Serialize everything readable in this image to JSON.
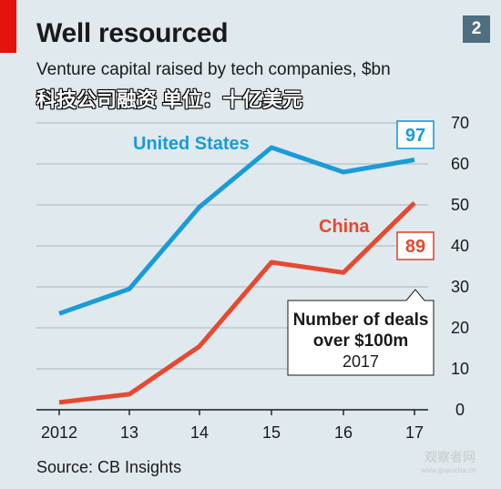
{
  "header": {
    "title": "Well resourced",
    "badge": "2",
    "subtitle": "Venture capital raised by tech companies, $bn",
    "chinese_caption": "科技公司融资 单位：十亿美元"
  },
  "footer": {
    "source": "Source: CB Insights",
    "watermark": "观察者网",
    "watermark_sub": "www.guancha.cn"
  },
  "colors": {
    "us": "#1a9bd7",
    "china": "#e5492f",
    "grid": "#a9b7bf",
    "axis": "#1a1a1a",
    "accent_bar": "#e3120b",
    "background": "#dfe9ee"
  },
  "chart_data": {
    "type": "line",
    "title": "Well resourced",
    "subtitle": "Venture capital raised by tech companies, $bn",
    "x": [
      "2012",
      "13",
      "14",
      "15",
      "16",
      "17"
    ],
    "ylim": [
      0,
      70
    ],
    "yticks": [
      0,
      10,
      20,
      30,
      40,
      50,
      60,
      70
    ],
    "y_axis_side": "right",
    "grid": true,
    "series": [
      {
        "name": "United States",
        "values": [
          23.5,
          29.5,
          49.5,
          64,
          58,
          61
        ],
        "end_label": "97",
        "color_key": "us"
      },
      {
        "name": "China",
        "values": [
          1.8,
          3.8,
          15.5,
          36,
          33.5,
          50.5
        ],
        "end_label": "89",
        "color_key": "china"
      }
    ],
    "annotation": {
      "line1": "Number of deals",
      "line2": "over $100m",
      "line3": "2017"
    }
  }
}
